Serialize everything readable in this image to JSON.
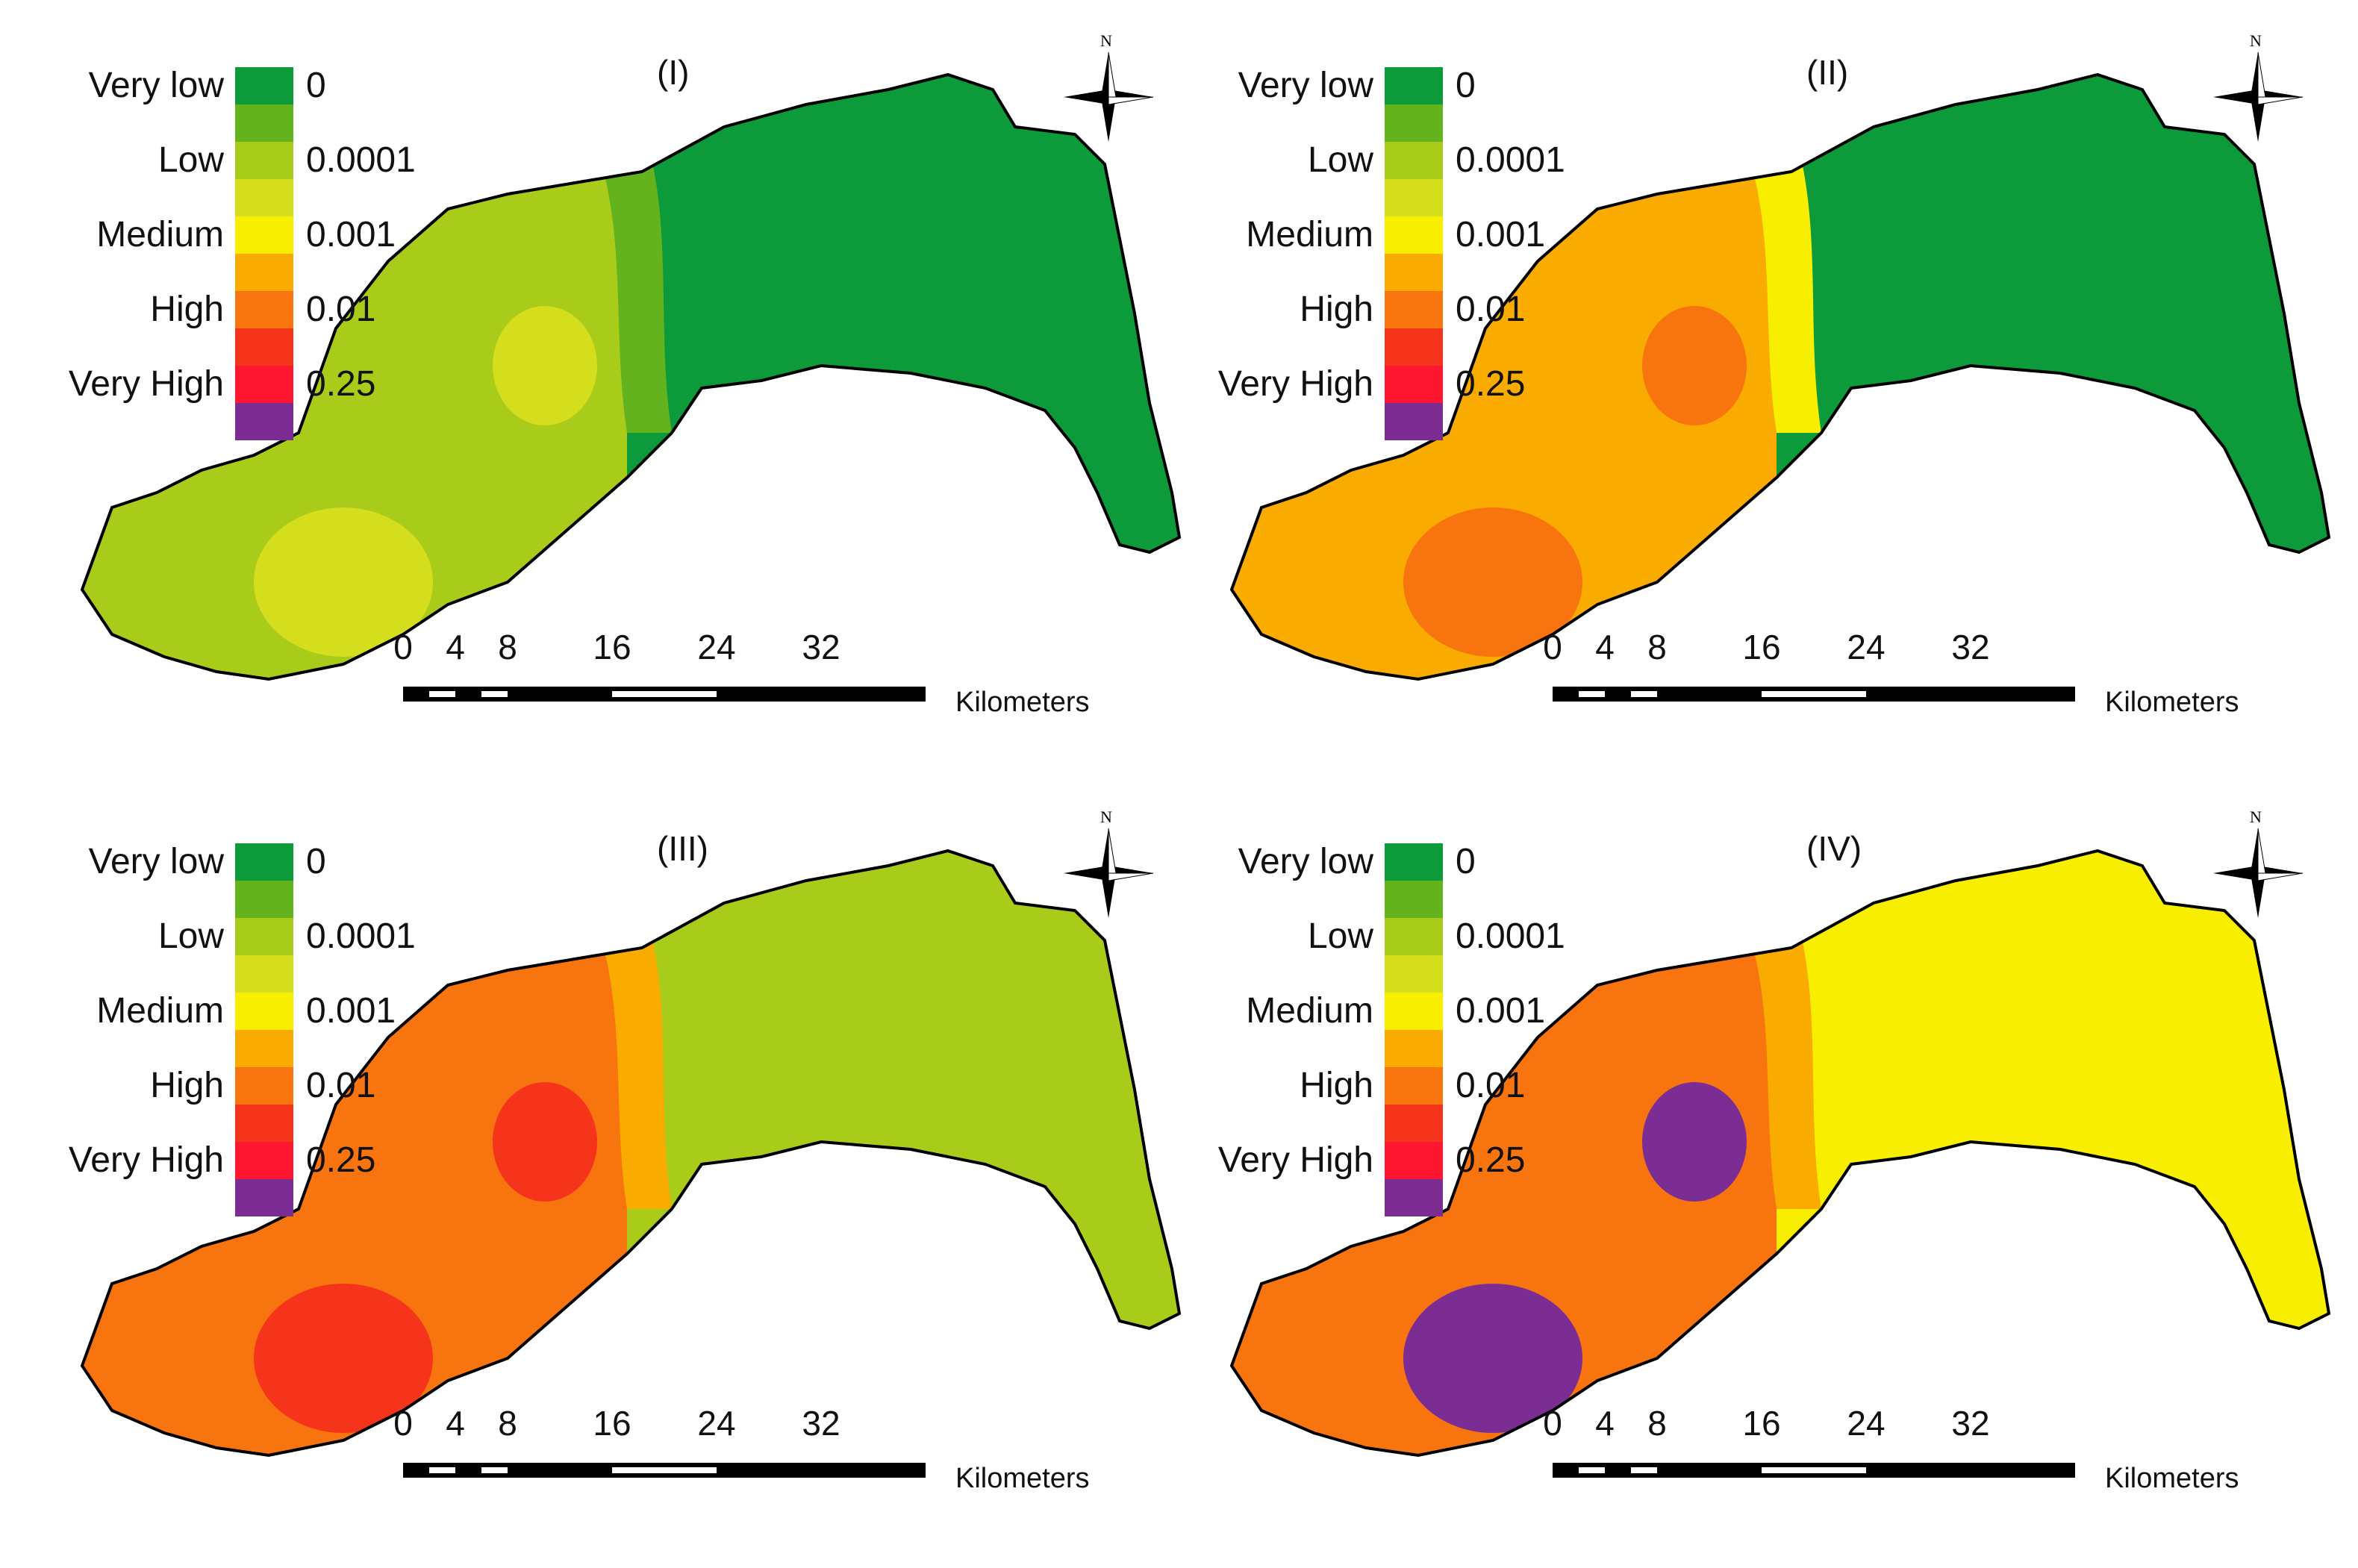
{
  "legend": {
    "labels": [
      "Very low",
      "Low",
      "Medium",
      "High",
      "Very High"
    ],
    "values": [
      "0",
      "0.0001",
      "0.001",
      "0.01",
      "0.25"
    ],
    "swatches": [
      "#0c9a3a",
      "#63b21e",
      "#a9cc1a",
      "#d4de1c",
      "#f8ef00",
      "#f9ab00",
      "#f7740f",
      "#f6341b",
      "#ff1630",
      "#7b2d93"
    ]
  },
  "panels": [
    {
      "title": "(I)",
      "west": "#a9cc1a",
      "west_edge": "#63b21e",
      "east": "#0c9a3a",
      "hotspot": "#d4de1c",
      "southwest": "#d4de1c"
    },
    {
      "title": "(II)",
      "west": "#f9ab00",
      "west_edge": "#f8ef00",
      "east": "#0c9a3a",
      "hotspot": "#f7740f",
      "southwest": "#f7740f"
    },
    {
      "title": "(III)",
      "west": "#f7740f",
      "west_edge": "#f9ab00",
      "east": "#a9cc1a",
      "hotspot": "#f6341b",
      "southwest": "#f6341b"
    },
    {
      "title": "(IV)",
      "west": "#f7740f",
      "west_edge": "#f9ab00",
      "east": "#f8ef00",
      "hotspot": "#7b2d93",
      "southwest": "#7b2d93"
    }
  ],
  "scale": {
    "ticks": [
      "0",
      "4",
      "8",
      "16",
      "24",
      "32"
    ],
    "tick_km": [
      0,
      4,
      8,
      16,
      24,
      32
    ],
    "unit": "Kilometers"
  },
  "north_label": "N"
}
